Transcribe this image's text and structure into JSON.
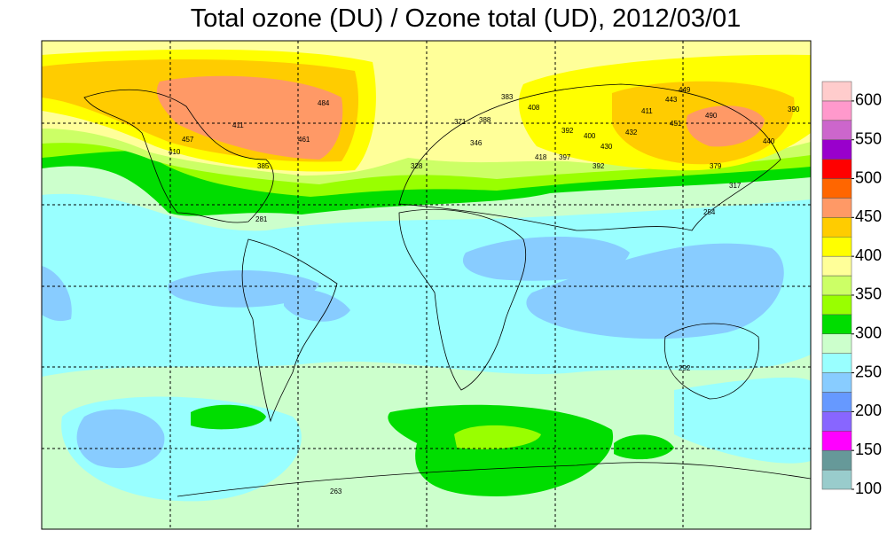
{
  "title": "Total ozone (DU) / Ozone total (UD), 2012/03/01",
  "colorbar": {
    "range": [
      100,
      625
    ],
    "ticks": [
      100,
      150,
      200,
      250,
      300,
      350,
      400,
      450,
      500,
      550,
      600
    ],
    "colors": [
      "#99cccc",
      "#669999",
      "#ff00ff",
      "#8866ff",
      "#6699ff",
      "#88ccff",
      "#99ffff",
      "#ccffcc",
      "#00dd00",
      "#99ff00",
      "#ccff66",
      "#ffff99",
      "#ffff00",
      "#ffcc00",
      "#ff9966",
      "#ff6600",
      "#ff0000",
      "#9900cc",
      "#cc66cc",
      "#ff99cc",
      "#ffcccc"
    ]
  },
  "stations": [
    "484",
    "461",
    "457",
    "411",
    "410",
    "385",
    "383",
    "388",
    "371",
    "408",
    "392",
    "400",
    "432",
    "430",
    "411",
    "443",
    "449",
    "418",
    "490",
    "451",
    "440",
    "390",
    "379",
    "317",
    "254",
    "292",
    "263",
    "281",
    "397",
    "392",
    "346",
    "328"
  ]
}
